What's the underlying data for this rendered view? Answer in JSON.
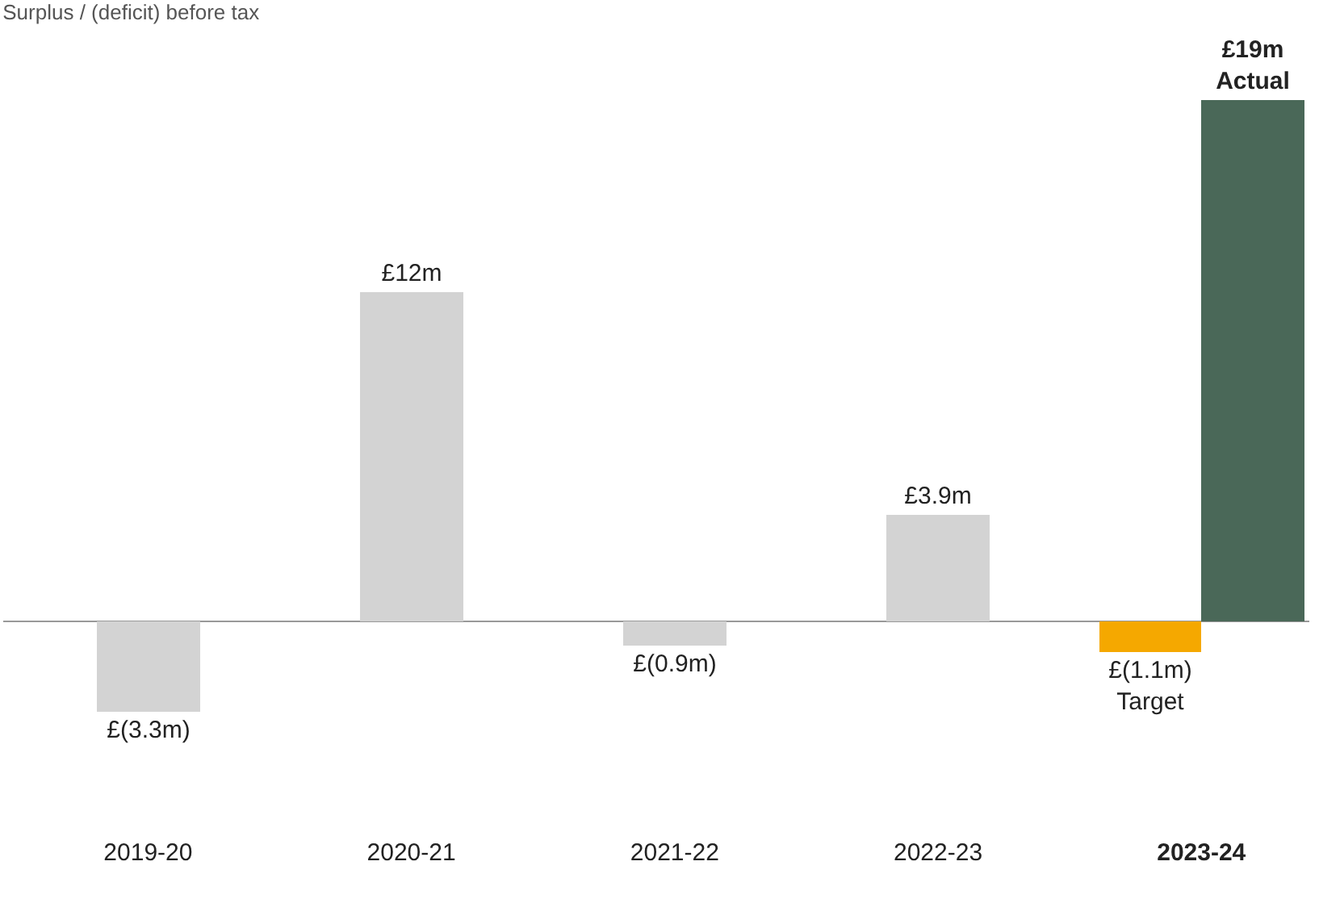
{
  "chart_data": {
    "type": "bar",
    "title": "Surplus / (deficit) before tax",
    "categories": [
      "2019-20",
      "2020-21",
      "2021-22",
      "2022-23",
      "2023-24"
    ],
    "series": [
      {
        "color": "#d3d3d3",
        "values": [
          -3.3,
          12,
          -0.9,
          3.9,
          null
        ],
        "value_labels": [
          "£(3.3m)",
          "£12m",
          "£(0.9m)",
          "£3.9m",
          null
        ]
      },
      {
        "name": "Target",
        "color": "#f5a800",
        "values": [
          null,
          null,
          null,
          null,
          -1.1
        ],
        "value_labels": [
          null,
          null,
          null,
          null,
          "£(1.1m)"
        ]
      },
      {
        "name": "Actual",
        "color": "#4a6858",
        "values": [
          null,
          null,
          null,
          null,
          19
        ],
        "value_labels": [
          null,
          null,
          null,
          null,
          "£19m"
        ]
      }
    ]
  }
}
